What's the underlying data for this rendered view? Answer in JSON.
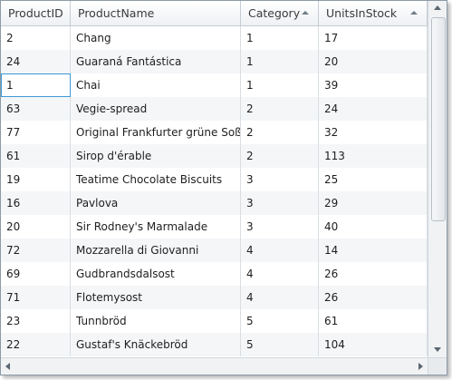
{
  "grid": {
    "columns": [
      {
        "label": "ProductID",
        "sorted": false
      },
      {
        "label": "ProductName",
        "sorted": false
      },
      {
        "label": "Category",
        "sorted": true
      },
      {
        "label": "UnitsInStock",
        "sorted": true
      }
    ],
    "rows": [
      [
        "2",
        "Chang",
        "1",
        "17"
      ],
      [
        "24",
        "Guaraná Fantástica",
        "1",
        "20"
      ],
      [
        "1",
        "Chai",
        "1",
        "39"
      ],
      [
        "63",
        "Vegie-spread",
        "2",
        "24"
      ],
      [
        "77",
        "Original Frankfurter grüne Soße",
        "2",
        "32"
      ],
      [
        "61",
        "Sirop d'érable",
        "2",
        "113"
      ],
      [
        "19",
        "Teatime Chocolate Biscuits",
        "3",
        "25"
      ],
      [
        "16",
        "Pavlova",
        "3",
        "29"
      ],
      [
        "20",
        "Sir Rodney's Marmalade",
        "3",
        "40"
      ],
      [
        "72",
        "Mozzarella di Giovanni",
        "4",
        "14"
      ],
      [
        "69",
        "Gudbrandsdalsost",
        "4",
        "26"
      ],
      [
        "71",
        "Flotemysost",
        "4",
        "26"
      ],
      [
        "23",
        "Tunnbröd",
        "5",
        "61"
      ],
      [
        "22",
        "Gustaf's Knäckebröd",
        "5",
        "104"
      ]
    ],
    "current_cell": {
      "row": 2,
      "col": 0
    }
  },
  "colors": {
    "row_alt": "#f4f6f8",
    "current_cell_border": "#3c9ad6",
    "border": "#8d9aa5"
  },
  "icons": {
    "sort": "sort-ascending-icon",
    "scroll_up": "arrow-up-icon",
    "scroll_down": "arrow-down-icon",
    "scroll_left": "arrow-left-icon",
    "scroll_right": "arrow-right-icon"
  }
}
